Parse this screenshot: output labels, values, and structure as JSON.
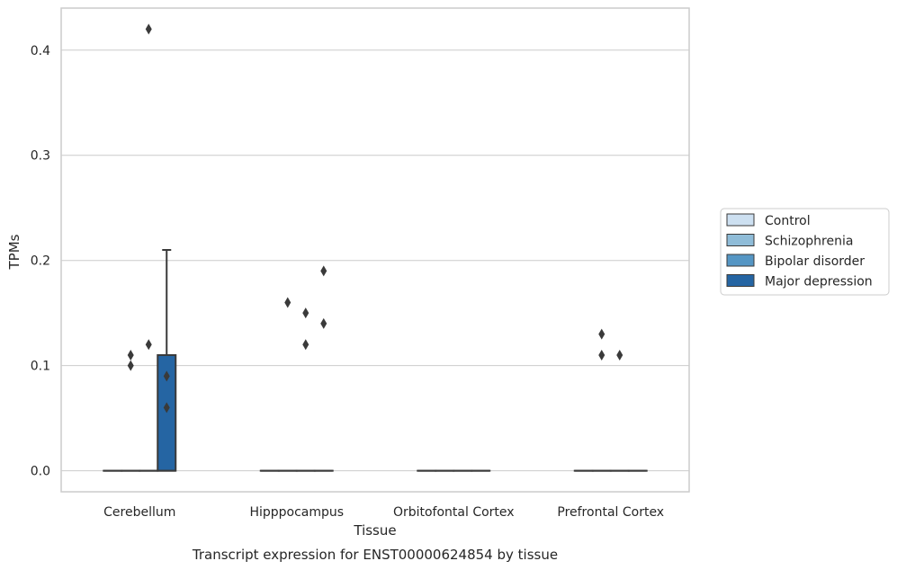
{
  "chart_data": {
    "type": "box",
    "xlabel": "Tissue",
    "ylabel": "TPMs",
    "caption": "Transcript expression for ENST00000624854 by tissue",
    "ylim": [
      -0.02,
      0.44
    ],
    "yticks": [
      0.0,
      0.1,
      0.2,
      0.3,
      0.4
    ],
    "ytick_labels": [
      "0.0",
      "0.1",
      "0.2",
      "0.3",
      "0.4"
    ],
    "categories": [
      "Cerebellum",
      "Hipppocampus",
      "Orbitofontal Cortex",
      "Prefrontal Cortex"
    ],
    "grid": "horizontal",
    "legend_position": "right",
    "series": [
      {
        "name": "Control",
        "color": "#cde0f1",
        "boxes": [
          {
            "q1": 0,
            "median": 0,
            "q3": 0,
            "whislo": 0,
            "whishi": 0,
            "fliers": []
          },
          {
            "q1": 0,
            "median": 0,
            "q3": 0,
            "whislo": 0,
            "whishi": 0,
            "fliers": []
          },
          {
            "q1": 0,
            "median": 0,
            "q3": 0,
            "whislo": 0,
            "whishi": 0,
            "fliers": []
          },
          {
            "q1": 0,
            "median": 0,
            "q3": 0,
            "whislo": 0,
            "whishi": 0,
            "fliers": []
          }
        ]
      },
      {
        "name": "Schizophrenia",
        "color": "#8fbcd8",
        "boxes": [
          {
            "q1": 0,
            "median": 0,
            "q3": 0,
            "whislo": 0,
            "whishi": 0,
            "fliers": [
              0.1,
              0.11
            ]
          },
          {
            "q1": 0,
            "median": 0,
            "q3": 0,
            "whislo": 0,
            "whishi": 0,
            "fliers": [
              0.16
            ]
          },
          {
            "q1": 0,
            "median": 0,
            "q3": 0,
            "whislo": 0,
            "whishi": 0,
            "fliers": []
          },
          {
            "q1": 0,
            "median": 0,
            "q3": 0,
            "whislo": 0,
            "whishi": 0,
            "fliers": [
              0.11,
              0.13
            ]
          }
        ]
      },
      {
        "name": "Bipolar disorder",
        "color": "#5596c4",
        "boxes": [
          {
            "q1": 0,
            "median": 0,
            "q3": 0,
            "whislo": 0,
            "whishi": 0,
            "fliers": [
              0.12,
              0.42
            ]
          },
          {
            "q1": 0,
            "median": 0,
            "q3": 0,
            "whislo": 0,
            "whishi": 0,
            "fliers": [
              0.12,
              0.15
            ]
          },
          {
            "q1": 0,
            "median": 0,
            "q3": 0,
            "whislo": 0,
            "whishi": 0,
            "fliers": []
          },
          {
            "q1": 0,
            "median": 0,
            "q3": 0,
            "whislo": 0,
            "whishi": 0,
            "fliers": [
              0.11
            ]
          }
        ]
      },
      {
        "name": "Major depression",
        "color": "#2565a3",
        "boxes": [
          {
            "q1": 0,
            "median": 0,
            "q3": 0.11,
            "whislo": 0,
            "whishi": 0.21,
            "fliers": [
              0.06,
              0.09
            ]
          },
          {
            "q1": 0,
            "median": 0,
            "q3": 0,
            "whislo": 0,
            "whishi": 0,
            "fliers": [
              0.14,
              0.19
            ]
          },
          {
            "q1": 0,
            "median": 0,
            "q3": 0,
            "whislo": 0,
            "whishi": 0,
            "fliers": []
          },
          {
            "q1": 0,
            "median": 0,
            "q3": 0,
            "whislo": 0,
            "whishi": 0,
            "fliers": []
          }
        ]
      }
    ]
  }
}
